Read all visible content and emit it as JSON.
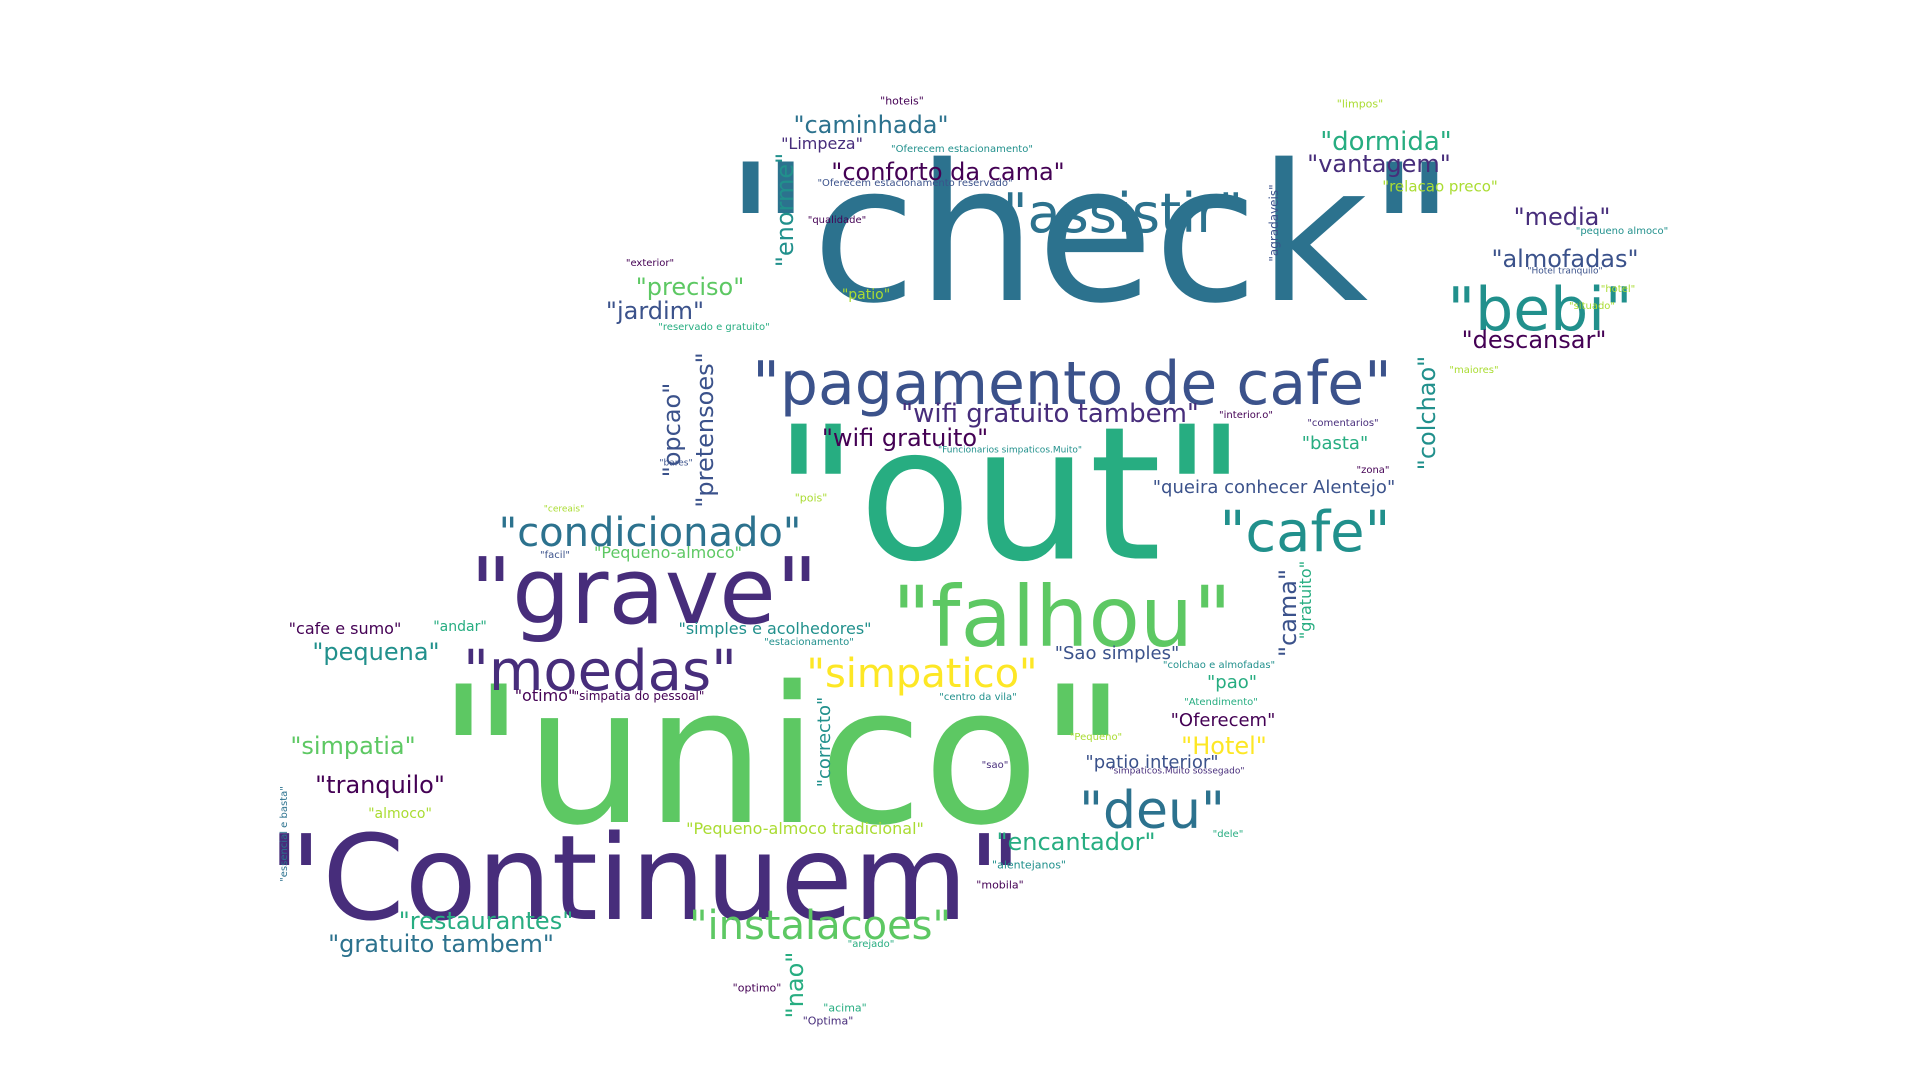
{
  "palette": {
    "background": "#ffffff",
    "dark_purple": "#440154",
    "indigo": "#472d7b",
    "blue": "#3b528b",
    "slate_blue": "#2c728e",
    "teal": "#21908c",
    "green_teal": "#27ad81",
    "green": "#5dc863",
    "lime": "#aadc32",
    "yellow": "#fde725"
  },
  "words": [
    {
      "text": "\"check\""
    },
    {
      "text": "\"out\""
    },
    {
      "text": "\"unico\""
    },
    {
      "text": "\"Continuem\""
    },
    {
      "text": "\"grave\""
    },
    {
      "text": "\"pagamento de cafe\""
    },
    {
      "text": "\"falhou\""
    },
    {
      "text": "\"moedas\""
    },
    {
      "text": "\"assistir\""
    },
    {
      "text": "\"bebi\""
    },
    {
      "text": "\"cafe\""
    },
    {
      "text": "\"condicionado\""
    },
    {
      "text": "\"deu\""
    },
    {
      "text": "\"simpatico\""
    },
    {
      "text": "\"instalacoes\""
    },
    {
      "text": "\"wifi gratuito tambem\""
    },
    {
      "text": "\"wifi gratuito\""
    },
    {
      "text": "\"caminhada\""
    },
    {
      "text": "\"conforto da cama\""
    },
    {
      "text": "\"dormida\""
    },
    {
      "text": "\"vantagem\""
    },
    {
      "text": "\"media\""
    },
    {
      "text": "\"almofadas\""
    },
    {
      "text": "\"descansar\""
    },
    {
      "text": "\"preciso\""
    },
    {
      "text": "\"jardim\""
    },
    {
      "text": "\"enorme\""
    },
    {
      "text": "\"opcao\""
    },
    {
      "text": "\"pretensoes\""
    },
    {
      "text": "\"colchao\""
    },
    {
      "text": "\"cama\""
    },
    {
      "text": "\"gratuito\""
    },
    {
      "text": "\"agradaveis\""
    },
    {
      "text": "\"pequena\""
    },
    {
      "text": "\"simpatia\""
    },
    {
      "text": "\"tranquilo\""
    },
    {
      "text": "\"restaurantes\""
    },
    {
      "text": "\"gratuito tambem\""
    },
    {
      "text": "\"encantador\""
    },
    {
      "text": "\"Hotel\""
    },
    {
      "text": "\"patio interior\""
    },
    {
      "text": "\"queira conhecer Alentejo\""
    },
    {
      "text": "\"Sao simples\""
    },
    {
      "text": "\"Oferecem\""
    },
    {
      "text": "\"pao\""
    },
    {
      "text": "\"basta\""
    },
    {
      "text": "\"correcto\""
    },
    {
      "text": "\"nao\""
    },
    {
      "text": "\"Pequeno-almoco tradicional\""
    },
    {
      "text": "\"simples e acolhedores\""
    },
    {
      "text": "\"Pequeno-almoco\""
    },
    {
      "text": "\"cafe e sumo\""
    },
    {
      "text": "\"andar\""
    },
    {
      "text": "\"otimo\""
    },
    {
      "text": "\"simpatia do pessoal\""
    },
    {
      "text": "\"Limpeza\""
    },
    {
      "text": "\"relacao preco\""
    },
    {
      "text": "\"almoco\""
    },
    {
      "text": "\"essencial e basta\""
    },
    {
      "text": "\"hoteis\""
    },
    {
      "text": "\"limpos\""
    },
    {
      "text": "\"Oferecem estacionamento\""
    },
    {
      "text": "\"Oferecem estacionamento reservado\""
    },
    {
      "text": "\"qualidade\""
    },
    {
      "text": "\"exterior\""
    },
    {
      "text": "\"patio\""
    },
    {
      "text": "\"reservado e gratuito\""
    },
    {
      "text": "\"pequeno almoco\""
    },
    {
      "text": "\"hotel\""
    },
    {
      "text": "\"Hotel tranquilo\""
    },
    {
      "text": "\"situado\""
    },
    {
      "text": "\"maiores\""
    },
    {
      "text": "\"interior.o\""
    },
    {
      "text": "\"comentarios\""
    },
    {
      "text": "\"zona\""
    },
    {
      "text": "\"bares\""
    },
    {
      "text": "\"Funcionarios simpaticos.Muito\""
    },
    {
      "text": "\"cereais\""
    },
    {
      "text": "\"pois\""
    },
    {
      "text": "\"facil\""
    },
    {
      "text": "\"estacionamento\""
    },
    {
      "text": "\"colchao e almofadas\""
    },
    {
      "text": "\"centro da vila\""
    },
    {
      "text": "\"Atendimento\""
    },
    {
      "text": "\"Pequeno\""
    },
    {
      "text": "\"sao\""
    },
    {
      "text": "\"simpaticos.Muito sossegado\""
    },
    {
      "text": "\"dele\""
    },
    {
      "text": "\"alentejanos\""
    },
    {
      "text": "\"mobila\""
    },
    {
      "text": "\"arejado\""
    },
    {
      "text": "\"optimo\""
    },
    {
      "text": "\"acima\""
    },
    {
      "text": "\"Optima\""
    }
  ]
}
